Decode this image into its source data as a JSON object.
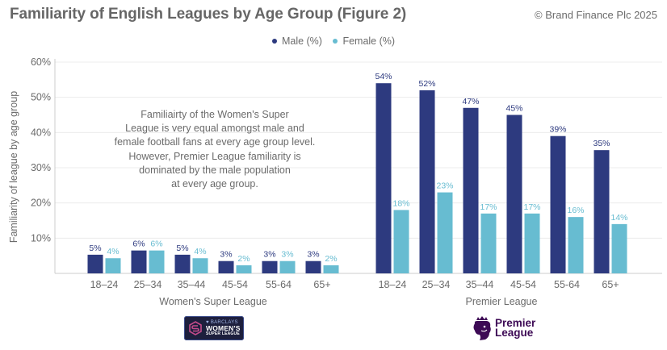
{
  "header": {
    "title": "Familiarity of English Leagues by Age Group (Figure 2)",
    "copyright": "© Brand Finance Plc 2025"
  },
  "colors": {
    "male": "#2d3a7f",
    "female": "#67bcd1",
    "male_label": "#2d3a7f",
    "female_label": "#67bcd1",
    "grid": "#ececec",
    "axis": "#cccccc",
    "text": "#6b6b6b"
  },
  "annotation": {
    "lines": [
      "Familiairty of the Women's Super",
      "League is very equal amongst male and",
      "female football fans at every age group level.",
      "However, Premier League familiarity is",
      "dominated by the male population",
      "at every age group."
    ]
  },
  "logos": {
    "wsl": {
      "line1": "♥ BARCLAYS",
      "line2": "WOMEN'S",
      "line3": "SUPER LEAGUE"
    },
    "pl": {
      "line1": "Premier",
      "line2": "League"
    }
  },
  "chart_data": {
    "type": "bar",
    "title": "Familiarity of English Leagues by Age Group (Figure 2)",
    "xlabel": "",
    "ylabel": "Familiarity of league by age group",
    "ylim": [
      0,
      60
    ],
    "yticks": [
      10,
      20,
      30,
      40,
      50,
      60
    ],
    "ytick_labels": [
      "10%",
      "20%",
      "30%",
      "40%",
      "50%",
      "60%"
    ],
    "grid": true,
    "legend": {
      "placement": "top-center",
      "entries": [
        "Male (%)",
        "Female (%)"
      ]
    },
    "groups": [
      {
        "name": "Women's Super League",
        "categories": [
          "18–24",
          "25–34",
          "35–44",
          "45-54",
          "55-64",
          "65+"
        ],
        "series": [
          {
            "name": "Male (%)",
            "values": [
              5,
              6,
              5,
              3,
              3,
              3
            ]
          },
          {
            "name": "Female (%)",
            "values": [
              4,
              6,
              4,
              2,
              3,
              2
            ]
          }
        ],
        "bar_heights_approx": {
          "Male (%)": [
            5.3,
            6.5,
            5.3,
            3.5,
            3.5,
            3.5
          ],
          "Female (%)": [
            4.3,
            6.5,
            4.3,
            2.3,
            3.5,
            2.3
          ]
        }
      },
      {
        "name": "Premier League",
        "categories": [
          "18–24",
          "25–34",
          "35–44",
          "45-54",
          "55-64",
          "65+"
        ],
        "series": [
          {
            "name": "Male (%)",
            "values": [
              54,
              52,
              47,
              45,
              39,
              35
            ]
          },
          {
            "name": "Female (%)",
            "values": [
              18,
              23,
              17,
              17,
              16,
              14
            ]
          }
        ]
      }
    ]
  }
}
